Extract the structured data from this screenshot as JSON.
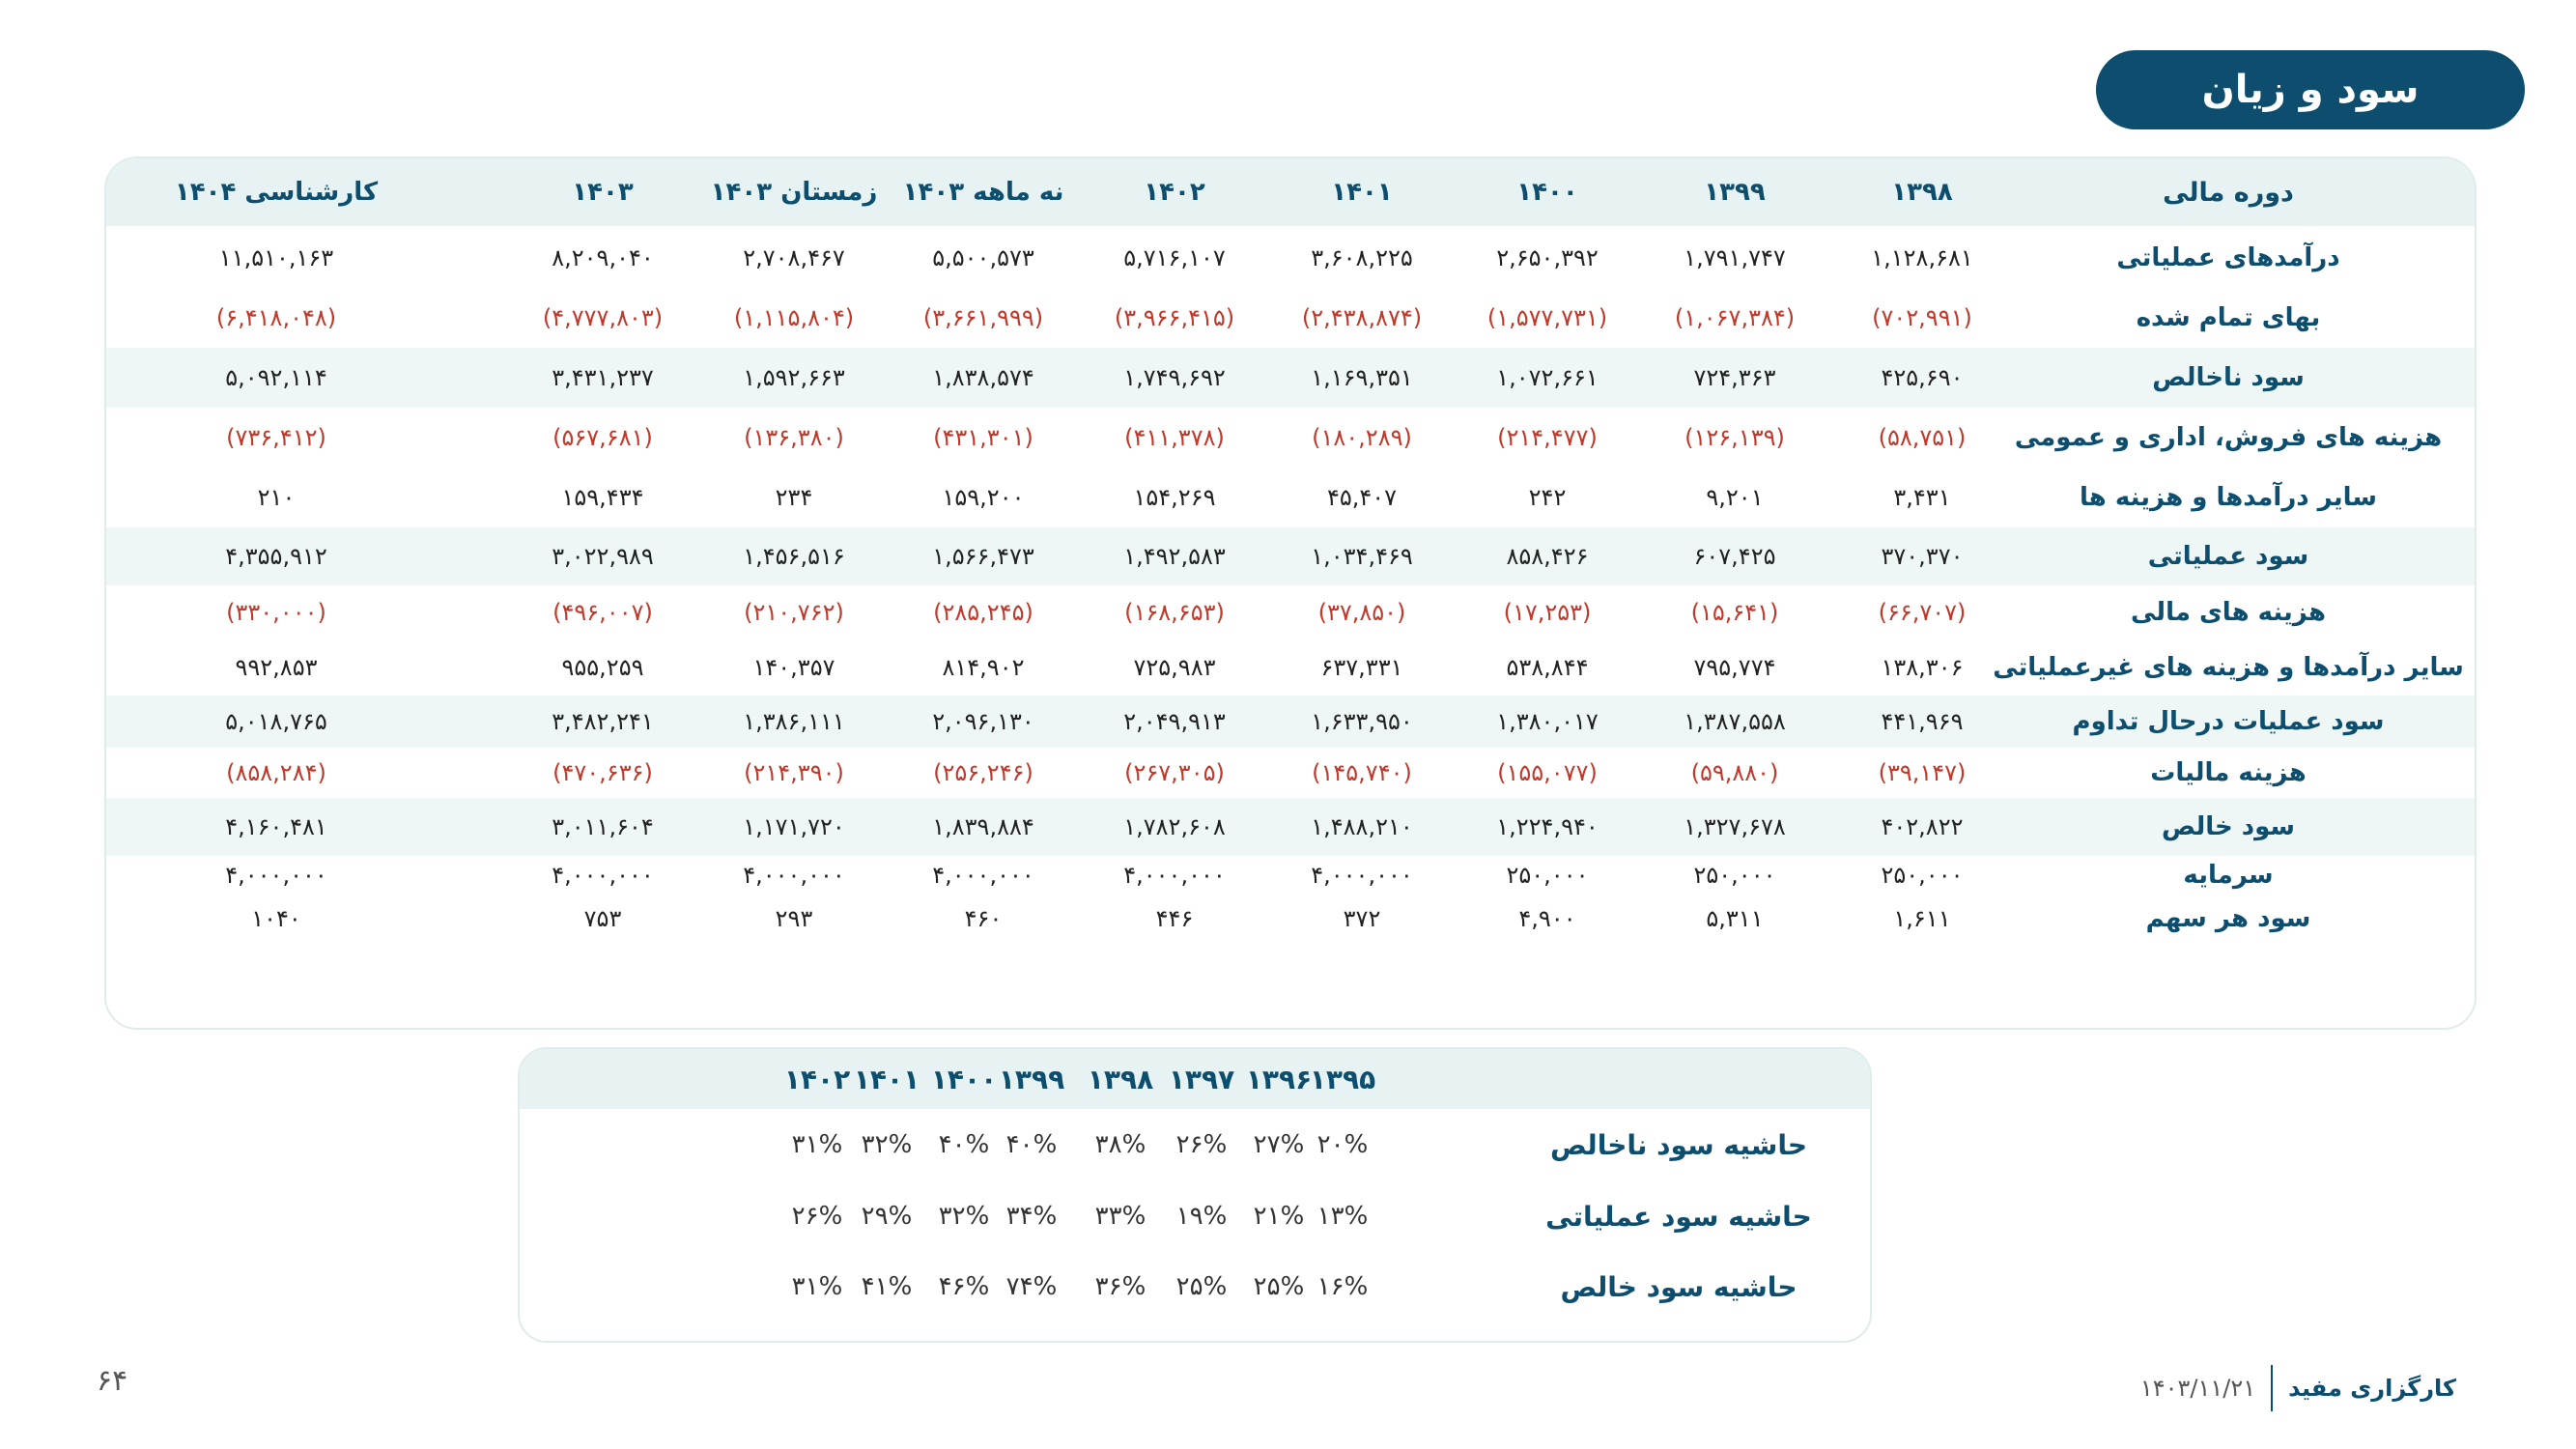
{
  "title": "سود و زیان",
  "pl_table": {
    "label_header": "دوره مالی",
    "columns": [
      "۱۳۹۸",
      "۱۳۹۹",
      "۱۴۰۰",
      "۱۴۰۱",
      "۱۴۰۲",
      "نه ماهه ۱۴۰۳",
      "زمستان ۱۴۰۳",
      "۱۴۰۳",
      "کارشناسی ۱۴۰۴"
    ],
    "rows": [
      {
        "label": "درآمدهای عملیاتی",
        "negative": false,
        "values": [
          "۱,۱۲۸,۶۸۱",
          "۱,۷۹۱,۷۴۷",
          "۲,۶۵۰,۳۹۲",
          "۳,۶۰۸,۲۲۵",
          "۵,۷۱۶,۱۰۷",
          "۵,۵۰۰,۵۷۳",
          "۲,۷۰۸,۴۶۷",
          "۸,۲۰۹,۰۴۰",
          "۱۱,۵۱۰,۱۶۳"
        ]
      },
      {
        "label": "بهای تمام شده",
        "negative": true,
        "values": [
          "(۷۰۲,۹۹۱)",
          "(۱,۰۶۷,۳۸۴)",
          "(۱,۵۷۷,۷۳۱)",
          "(۲,۴۳۸,۸۷۴)",
          "(۳,۹۶۶,۴۱۵)",
          "(۳,۶۶۱,۹۹۹)",
          "(۱,۱۱۵,۸۰۴)",
          "(۴,۷۷۷,۸۰۳)",
          "(۶,۴۱۸,۰۴۸)"
        ]
      },
      {
        "label": "سود ناخالص",
        "negative": false,
        "values": [
          "۴۲۵,۶۹۰",
          "۷۲۴,۳۶۳",
          "۱,۰۷۲,۶۶۱",
          "۱,۱۶۹,۳۵۱",
          "۱,۷۴۹,۶۹۲",
          "۱,۸۳۸,۵۷۴",
          "۱,۵۹۲,۶۶۳",
          "۳,۴۳۱,۲۳۷",
          "۵,۰۹۲,۱۱۴"
        ]
      },
      {
        "label": "هزینه های فروش، اداری و عمومی",
        "negative": true,
        "values": [
          "(۵۸,۷۵۱)",
          "(۱۲۶,۱۳۹)",
          "(۲۱۴,۴۷۷)",
          "(۱۸۰,۲۸۹)",
          "(۴۱۱,۳۷۸)",
          "(۴۳۱,۳۰۱)",
          "(۱۳۶,۳۸۰)",
          "(۵۶۷,۶۸۱)",
          "(۷۳۶,۴۱۲)"
        ]
      },
      {
        "label": "سایر درآمدها و هزینه ها",
        "negative": false,
        "values": [
          "۳,۴۳۱",
          "۹,۲۰۱",
          "۲۴۲",
          "۴۵,۴۰۷",
          "۱۵۴,۲۶۹",
          "۱۵۹,۲۰۰",
          "۲۳۴",
          "۱۵۹,۴۳۴",
          "۲۱۰"
        ]
      },
      {
        "label": "سود عملیاتی",
        "negative": false,
        "values": [
          "۳۷۰,۳۷۰",
          "۶۰۷,۴۲۵",
          "۸۵۸,۴۲۶",
          "۱,۰۳۴,۴۶۹",
          "۱,۴۹۲,۵۸۳",
          "۱,۵۶۶,۴۷۳",
          "۱,۴۵۶,۵۱۶",
          "۳,۰۲۲,۹۸۹",
          "۴,۳۵۵,۹۱۲"
        ]
      },
      {
        "label": "هزینه های مالی",
        "negative": true,
        "values": [
          "(۶۶,۷۰۷)",
          "(۱۵,۶۴۱)",
          "(۱۷,۲۵۳)",
          "(۳۷,۸۵۰)",
          "(۱۶۸,۶۵۳)",
          "(۲۸۵,۲۴۵)",
          "(۲۱۰,۷۶۲)",
          "(۴۹۶,۰۰۷)",
          "(۳۳۰,۰۰۰)"
        ]
      },
      {
        "label": "سایر درآمدها و هزینه های غیرعملیاتی",
        "negative": false,
        "values": [
          "۱۳۸,۳۰۶",
          "۷۹۵,۷۷۴",
          "۵۳۸,۸۴۴",
          "۶۳۷,۳۳۱",
          "۷۲۵,۹۸۳",
          "۸۱۴,۹۰۲",
          "۱۴۰,۳۵۷",
          "۹۵۵,۲۵۹",
          "۹۹۲,۸۵۳"
        ]
      },
      {
        "label": "سود عملیات درحال تداوم",
        "negative": false,
        "values": [
          "۴۴۱,۹۶۹",
          "۱,۳۸۷,۵۵۸",
          "۱,۳۸۰,۰۱۷",
          "۱,۶۳۳,۹۵۰",
          "۲,۰۴۹,۹۱۳",
          "۲,۰۹۶,۱۳۰",
          "۱,۳۸۶,۱۱۱",
          "۳,۴۸۲,۲۴۱",
          "۵,۰۱۸,۷۶۵"
        ]
      },
      {
        "label": "هزینه مالیات",
        "negative": true,
        "values": [
          "(۳۹,۱۴۷)",
          "(۵۹,۸۸۰)",
          "(۱۵۵,۰۷۷)",
          "(۱۴۵,۷۴۰)",
          "(۲۶۷,۳۰۵)",
          "(۲۵۶,۲۴۶)",
          "(۲۱۴,۳۹۰)",
          "(۴۷۰,۶۳۶)",
          "(۸۵۸,۲۸۴)"
        ]
      },
      {
        "label": "سود خالص",
        "negative": false,
        "values": [
          "۴۰۲,۸۲۲",
          "۱,۳۲۷,۶۷۸",
          "۱,۲۲۴,۹۴۰",
          "۱,۴۸۸,۲۱۰",
          "۱,۷۸۲,۶۰۸",
          "۱,۸۳۹,۸۸۴",
          "۱,۱۷۱,۷۲۰",
          "۳,۰۱۱,۶۰۴",
          "۴,۱۶۰,۴۸۱"
        ]
      },
      {
        "label": "سرمایه",
        "negative": false,
        "values": [
          "۲۵۰,۰۰۰",
          "۲۵۰,۰۰۰",
          "۲۵۰,۰۰۰",
          "۴,۰۰۰,۰۰۰",
          "۴,۰۰۰,۰۰۰",
          "۴,۰۰۰,۰۰۰",
          "۴,۰۰۰,۰۰۰",
          "۴,۰۰۰,۰۰۰",
          "۴,۰۰۰,۰۰۰"
        ]
      },
      {
        "label": "سود هر سهم",
        "negative": false,
        "values": [
          "۱,۶۱۱",
          "۵,۳۱۱",
          "۴,۹۰۰",
          "۳۷۲",
          "۴۴۶",
          "۴۶۰",
          "۲۹۳",
          "۷۵۳",
          "۱۰۴۰"
        ]
      }
    ]
  },
  "margin_table": {
    "columns": [
      "۱۳۹۵",
      "۱۳۹۶",
      "۱۳۹۷",
      "۱۳۹۸",
      "۱۳۹۹",
      "۱۴۰۰",
      "۱۴۰۱",
      "۱۴۰۲"
    ],
    "rows": [
      {
        "label": "حاشیه سود ناخالص",
        "values": [
          "۲۰%",
          "۲۷%",
          "۲۶%",
          "۳۸%",
          "۴۰%",
          "۴۰%",
          "۳۲%",
          "۳۱%"
        ]
      },
      {
        "label": "حاشیه سود عملیاتی",
        "values": [
          "۱۳%",
          "۲۱%",
          "۱۹%",
          "۳۳%",
          "۳۴%",
          "۳۲%",
          "۲۹%",
          "۲۶%"
        ]
      },
      {
        "label": "حاشیه سود خالص",
        "values": [
          "۱۶%",
          "۲۵%",
          "۲۵%",
          "۳۶%",
          "۷۴%",
          "۴۶%",
          "۴۱%",
          "۳۱%"
        ]
      }
    ]
  },
  "footer": {
    "page_number": "۶۴",
    "brand": "کارگزاری مفید",
    "date": "۱۴۰۳/۱۱/۲۱"
  }
}
